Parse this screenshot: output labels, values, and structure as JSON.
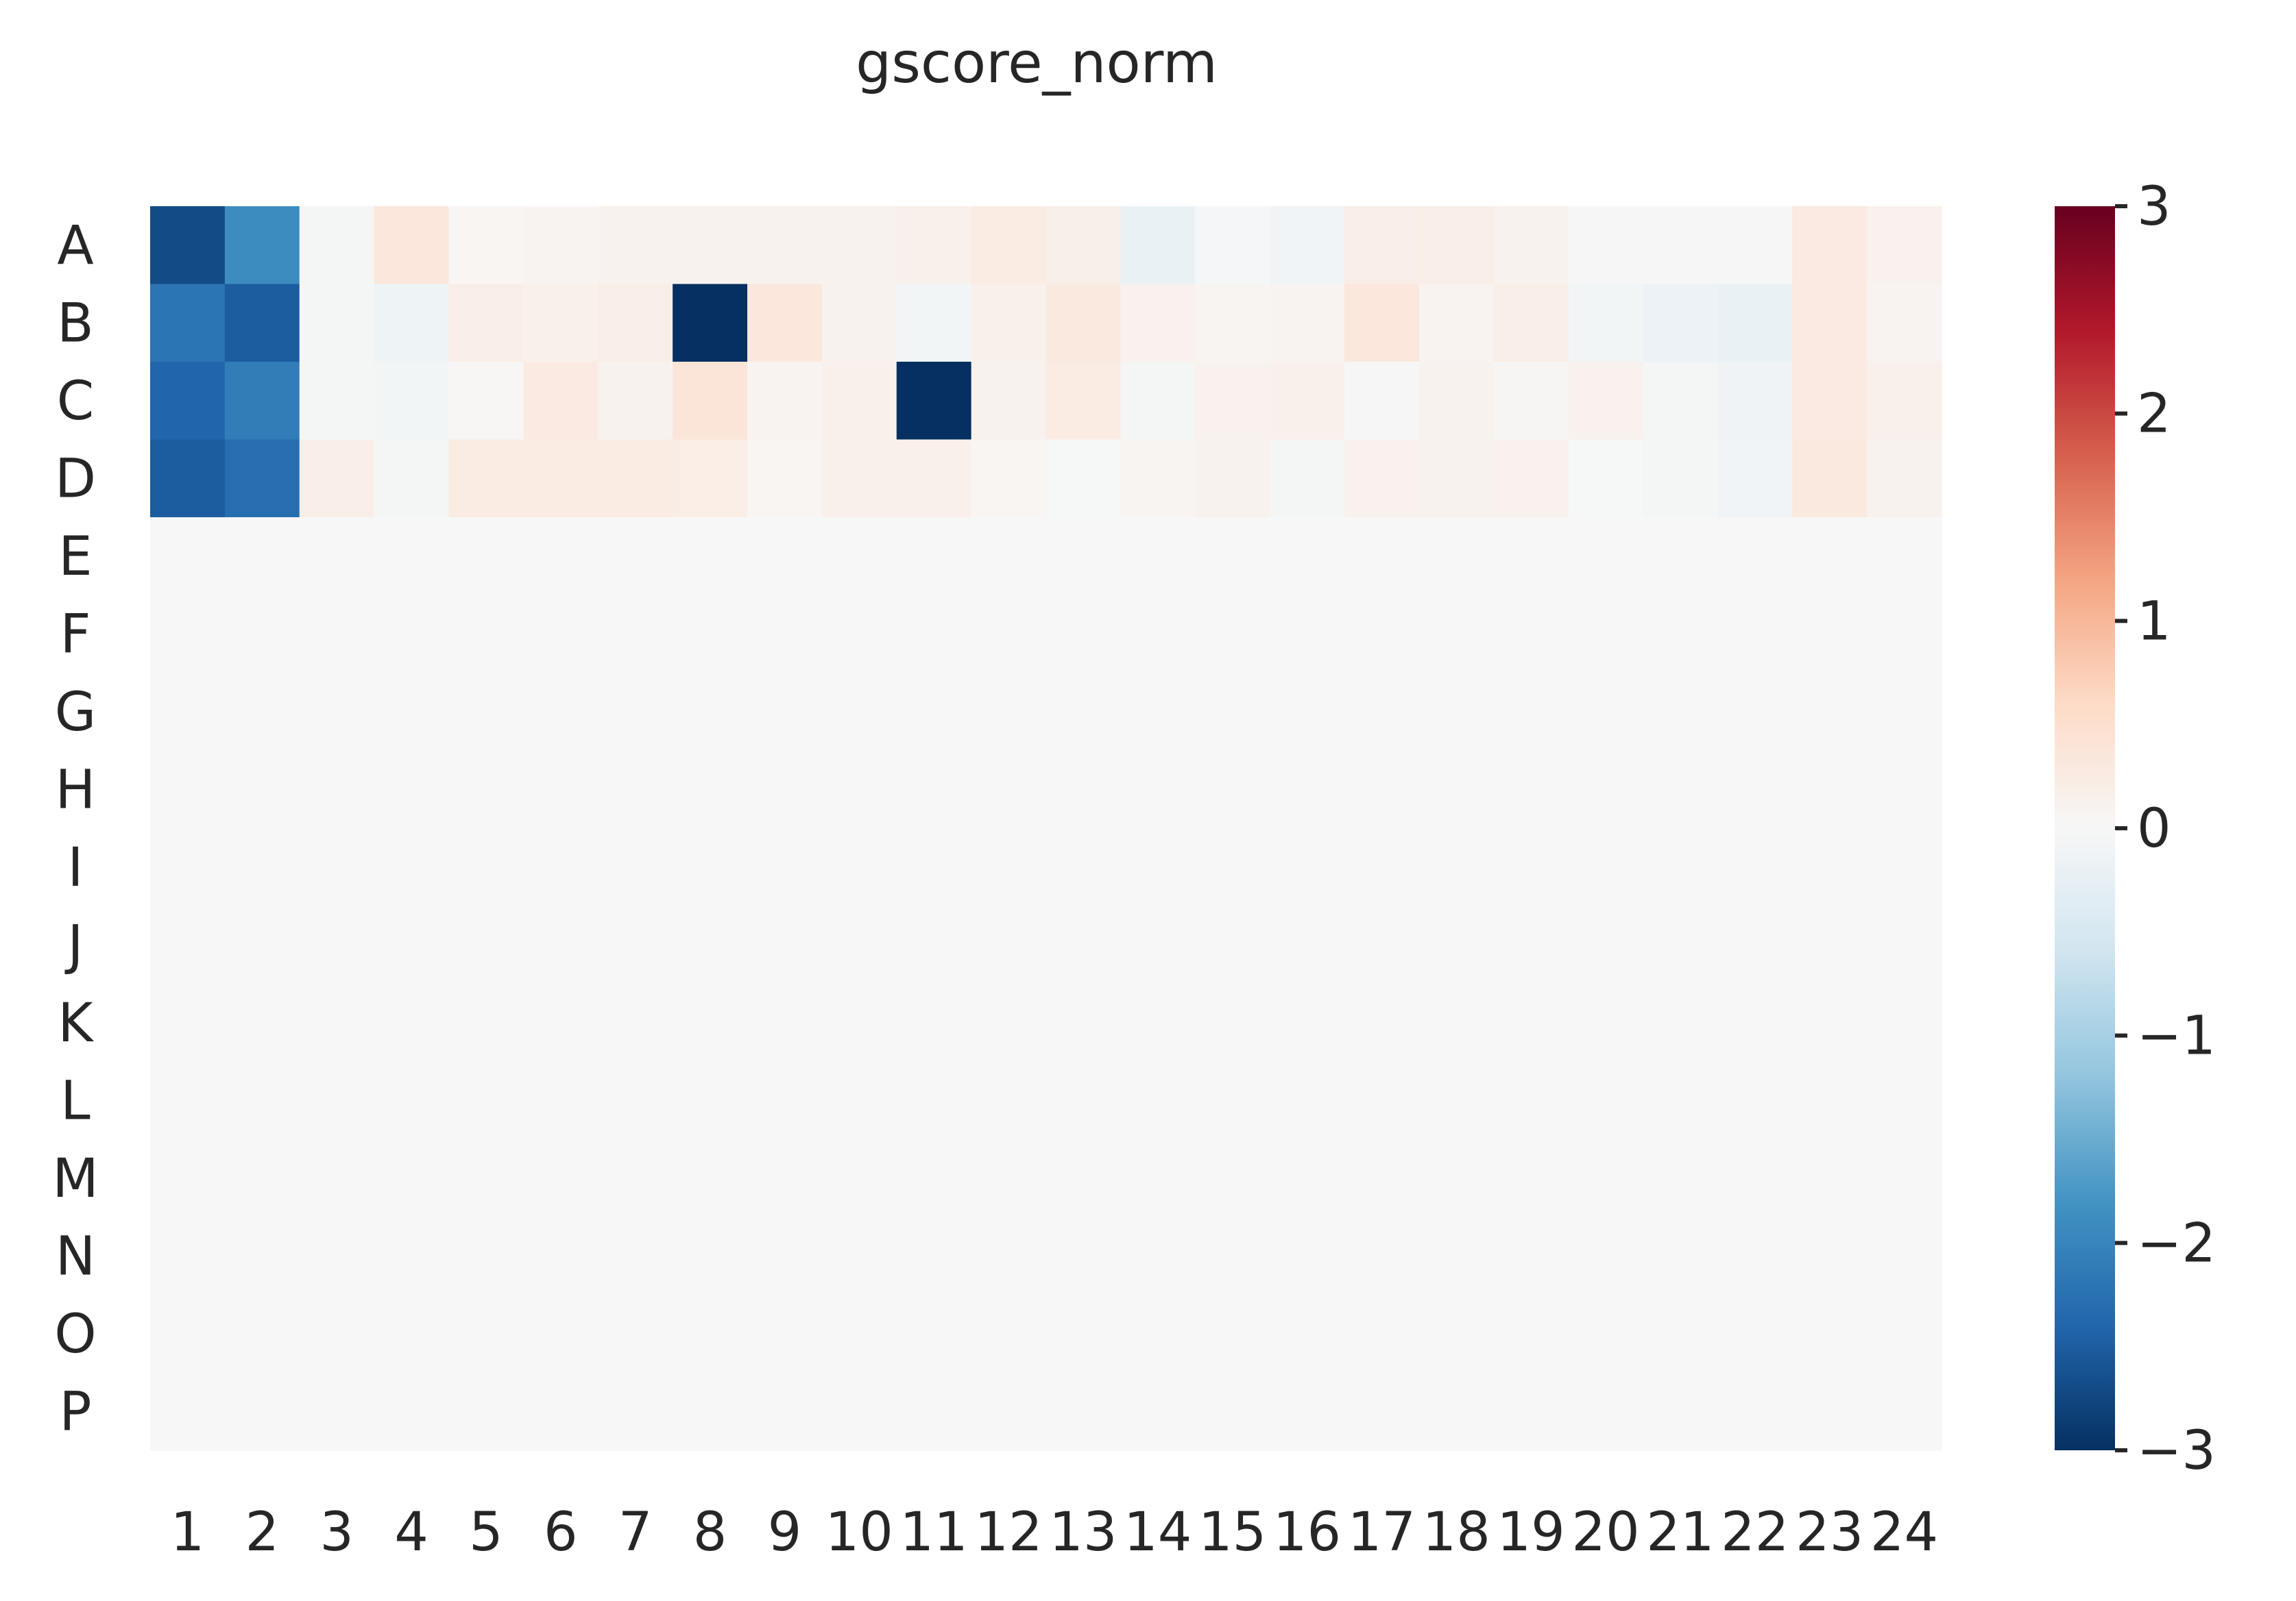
{
  "chart_data": {
    "type": "heatmap",
    "title": "gscore_norm",
    "rows": [
      "A",
      "B",
      "C",
      "D",
      "E",
      "F",
      "G",
      "H",
      "I",
      "J",
      "K",
      "L",
      "M",
      "N",
      "O",
      "P"
    ],
    "columns": [
      "1",
      "2",
      "3",
      "4",
      "5",
      "6",
      "7",
      "8",
      "9",
      "10",
      "11",
      "12",
      "13",
      "14",
      "15",
      "16",
      "17",
      "18",
      "19",
      "20",
      "21",
      "22",
      "23",
      "24"
    ],
    "values": [
      [
        -2.7,
        -1.9,
        -0.05,
        0.35,
        0.05,
        0.08,
        0.1,
        0.1,
        0.1,
        0.1,
        0.15,
        0.25,
        0.18,
        -0.2,
        -0.03,
        -0.1,
        0.2,
        0.2,
        0.1,
        -0.02,
        -0.02,
        -0.02,
        0.28,
        0.12
      ],
      [
        -2.2,
        -2.5,
        -0.05,
        -0.15,
        0.2,
        0.15,
        0.2,
        -3.0,
        0.35,
        0.1,
        -0.08,
        0.15,
        0.3,
        0.12,
        0.06,
        0.08,
        0.35,
        0.08,
        0.2,
        -0.08,
        -0.18,
        -0.2,
        0.28,
        0.08
      ],
      [
        -2.4,
        -2.1,
        -0.05,
        -0.08,
        0.03,
        0.28,
        0.1,
        0.38,
        0.08,
        0.15,
        -3.0,
        0.1,
        0.25,
        -0.05,
        0.12,
        0.15,
        -0.02,
        0.1,
        0.04,
        0.12,
        -0.05,
        -0.12,
        0.28,
        0.15
      ],
      [
        -2.5,
        -2.3,
        0.2,
        -0.05,
        0.25,
        0.25,
        0.25,
        0.22,
        0.05,
        0.15,
        0.15,
        0.05,
        -0.01,
        0.06,
        0.1,
        -0.05,
        0.12,
        0.1,
        0.12,
        -0.01,
        -0.05,
        -0.1,
        0.3,
        0.1
      ],
      [
        0,
        0,
        0,
        0,
        0,
        0,
        0,
        0,
        0,
        0,
        0,
        0,
        0,
        0,
        0,
        0,
        0,
        0,
        0,
        0,
        0,
        0,
        0,
        0
      ],
      [
        0,
        0,
        0,
        0,
        0,
        0,
        0,
        0,
        0,
        0,
        0,
        0,
        0,
        0,
        0,
        0,
        0,
        0,
        0,
        0,
        0,
        0,
        0,
        0
      ],
      [
        0,
        0,
        0,
        0,
        0,
        0,
        0,
        0,
        0,
        0,
        0,
        0,
        0,
        0,
        0,
        0,
        0,
        0,
        0,
        0,
        0,
        0,
        0,
        0
      ],
      [
        0,
        0,
        0,
        0,
        0,
        0,
        0,
        0,
        0,
        0,
        0,
        0,
        0,
        0,
        0,
        0,
        0,
        0,
        0,
        0,
        0,
        0,
        0,
        0
      ],
      [
        0,
        0,
        0,
        0,
        0,
        0,
        0,
        0,
        0,
        0,
        0,
        0,
        0,
        0,
        0,
        0,
        0,
        0,
        0,
        0,
        0,
        0,
        0,
        0
      ],
      [
        0,
        0,
        0,
        0,
        0,
        0,
        0,
        0,
        0,
        0,
        0,
        0,
        0,
        0,
        0,
        0,
        0,
        0,
        0,
        0,
        0,
        0,
        0,
        0
      ],
      [
        0,
        0,
        0,
        0,
        0,
        0,
        0,
        0,
        0,
        0,
        0,
        0,
        0,
        0,
        0,
        0,
        0,
        0,
        0,
        0,
        0,
        0,
        0,
        0
      ],
      [
        0,
        0,
        0,
        0,
        0,
        0,
        0,
        0,
        0,
        0,
        0,
        0,
        0,
        0,
        0,
        0,
        0,
        0,
        0,
        0,
        0,
        0,
        0,
        0
      ],
      [
        0,
        0,
        0,
        0,
        0,
        0,
        0,
        0,
        0,
        0,
        0,
        0,
        0,
        0,
        0,
        0,
        0,
        0,
        0,
        0,
        0,
        0,
        0,
        0
      ],
      [
        0,
        0,
        0,
        0,
        0,
        0,
        0,
        0,
        0,
        0,
        0,
        0,
        0,
        0,
        0,
        0,
        0,
        0,
        0,
        0,
        0,
        0,
        0,
        0
      ],
      [
        0,
        0,
        0,
        0,
        0,
        0,
        0,
        0,
        0,
        0,
        0,
        0,
        0,
        0,
        0,
        0,
        0,
        0,
        0,
        0,
        0,
        0,
        0,
        0
      ],
      [
        0,
        0,
        0,
        0,
        0,
        0,
        0,
        0,
        0,
        0,
        0,
        0,
        0,
        0,
        0,
        0,
        0,
        0,
        0,
        0,
        0,
        0,
        0,
        0
      ]
    ],
    "colorbar": {
      "colormap": "RdBu_r",
      "vmin": -3,
      "vmax": 3,
      "ticks": [
        3,
        2,
        1,
        0,
        -1,
        -2,
        -3
      ],
      "tick_labels": [
        "3",
        "2",
        "1",
        "0",
        "−1",
        "−2",
        "−3"
      ],
      "colors": [
        "#053061",
        "#2166ac",
        "#4393c3",
        "#92c5de",
        "#d1e5f0",
        "#f7f7f7",
        "#fddbc7",
        "#f4a582",
        "#d6604d",
        "#b2182b",
        "#67001f"
      ]
    }
  }
}
